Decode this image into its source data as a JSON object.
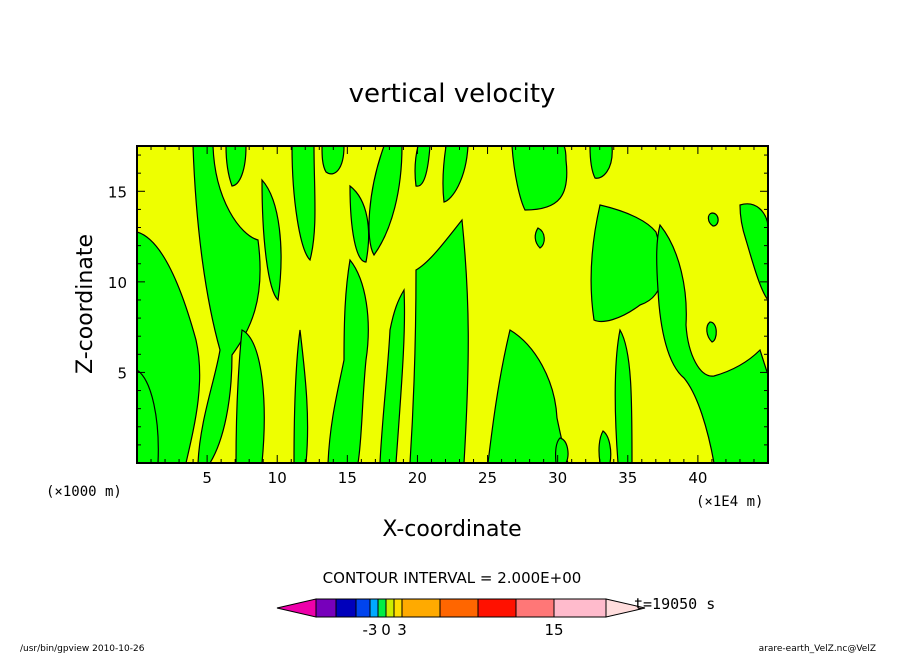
{
  "chart_data": {
    "type": "contour",
    "title": "vertical velocity",
    "xlabel": "X-coordinate",
    "ylabel": "Z-coordinate",
    "x_unit_label": "(×1000 m)",
    "x_scale_label": "(×1E4 m)",
    "xlim": [
      0,
      45
    ],
    "ylim": [
      0,
      17.5
    ],
    "x_ticks": [
      5,
      10,
      15,
      20,
      25,
      30,
      35,
      40
    ],
    "y_ticks": [
      5,
      10,
      15
    ],
    "field_colors": {
      "positive": "#00ff00",
      "negative": "#eeff00"
    },
    "contour_interval_label": "CONTOUR INTERVAL = 2.000E+00",
    "colorbar": {
      "colors": [
        "#ee00aa",
        "#7700bb",
        "#0000bb",
        "#0044ee",
        "#00aaff",
        "#00ee44",
        "#ccee00",
        "#ffdd00",
        "#ffaa00",
        "#ff6600",
        "#ff1100",
        "#ff7777",
        "#ffbbcc",
        "#ffdddd"
      ],
      "labels": [
        "-3",
        "0",
        "3",
        "15"
      ],
      "time_label": "t=19050 s"
    }
  },
  "footer": {
    "left": "/usr/bin/gpview   2010-10-26",
    "right": "arare-earth_VelZ.nc@VelZ"
  }
}
